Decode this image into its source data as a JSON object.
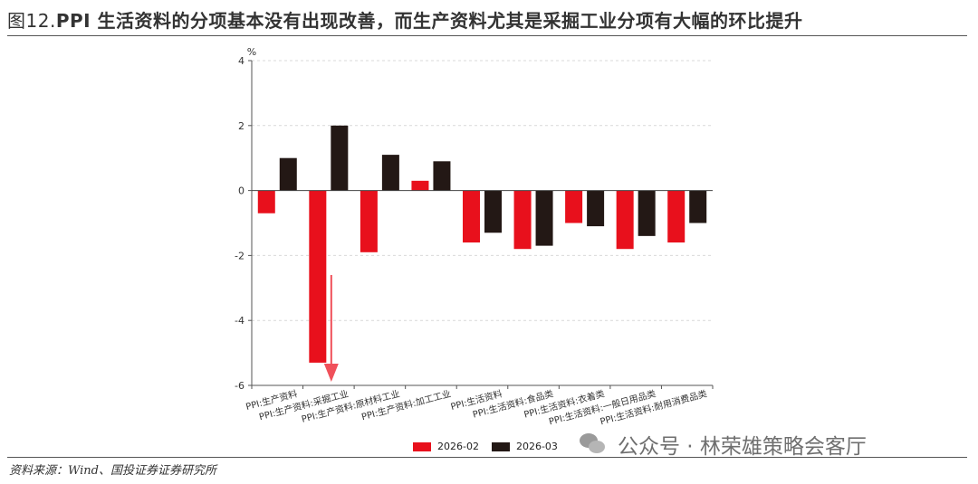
{
  "title": {
    "prefix": "图12.",
    "text": "PPI 生活资料的分项基本没有出现改善，而生产资料尤其是采掘工业分项有大幅的环比提升"
  },
  "source": "资料来源：Wind、国投证券证券研究所",
  "watermark": "公众号 · 林荣雄策略会客厅",
  "colors": {
    "s1": "#e8101c",
    "s2": "#231815"
  },
  "chart_data": {
    "type": "bar",
    "title": "",
    "xlabel": "",
    "ylabel": "%",
    "ylim": [
      -6,
      4
    ],
    "yticks": [
      4,
      2,
      0,
      -2,
      -4,
      -6
    ],
    "grid": true,
    "legend": "bottom",
    "annotation": "downward red arrow under PPI:生产资料:采掘工业",
    "categories": [
      "PPI:生产资料",
      "PPI:生产资料:采掘工业",
      "PPI:生产资料:原材料工业",
      "PPI:生产资料:加工工业",
      "PPI:生活资料",
      "PPI:生活资料:食品类",
      "PPI:生活资料:衣着类",
      "PPI:生活资料:一般日用品类",
      "PPI:生活资料:耐用消费品类"
    ],
    "series": [
      {
        "name": "2026-02",
        "color": "#e8101c",
        "values": [
          -0.7,
          -5.3,
          -1.9,
          0.3,
          -1.6,
          -1.8,
          -1.0,
          -1.8,
          -1.6
        ]
      },
      {
        "name": "2026-03",
        "color": "#231815",
        "values": [
          1.0,
          2.0,
          1.1,
          0.9,
          -1.3,
          -1.7,
          -1.1,
          -1.4,
          -1.0
        ]
      }
    ]
  }
}
